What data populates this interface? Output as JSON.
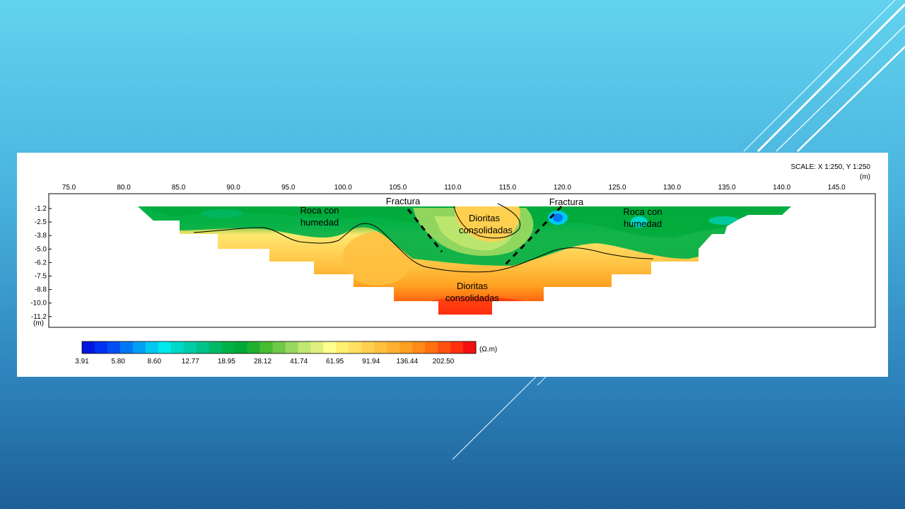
{
  "scale_label": "SCALE: X 1:250, Y 1:250",
  "x_unit": "(m)",
  "y_unit": "(m)",
  "x_ticks": [
    "75.0",
    "80.0",
    "85.0",
    "90.0",
    "95.0",
    "100.0",
    "105.0",
    "110.0",
    "115.0",
    "120.0",
    "125.0",
    "130.0",
    "135.0",
    "140.0",
    "145.0"
  ],
  "y_ticks": [
    "-1.2",
    "-2.5",
    "-3.8",
    "-5.0",
    "-6.2",
    "-7.5",
    "-8.8",
    "-10.0",
    "-11.2"
  ],
  "annotations": {
    "fractura_left": "Fractura",
    "fractura_right": "Fractura",
    "roca_left_1": "Roca con",
    "roca_left_2": "humedad",
    "roca_right_1": "Roca con",
    "roca_right_2": "humedad",
    "dioritas_top_1": "Dioritas",
    "dioritas_top_2": "consolidadas",
    "dioritas_bottom_1": "Dioritas",
    "dioritas_bottom_2": "consolidadas"
  },
  "colorbar": {
    "unit": "(Ω.m)",
    "labels": [
      "3.91",
      "5.80",
      "8.60",
      "12.77",
      "18.95",
      "28.12",
      "41.74",
      "61.95",
      "91.94",
      "136.44",
      "202.50"
    ],
    "colors": [
      "#0018e0",
      "#0030f0",
      "#0050f5",
      "#0078f5",
      "#00a0f5",
      "#00c8f0",
      "#00e8ec",
      "#00d8c8",
      "#00cca8",
      "#00c288",
      "#00b868",
      "#00b048",
      "#00a838",
      "#20b030",
      "#48bc30",
      "#70c848",
      "#98d860",
      "#c0e870",
      "#e0f080",
      "#ffff90",
      "#fff070",
      "#ffe060",
      "#ffd050",
      "#ffc040",
      "#ffb030",
      "#ffa020",
      "#ff8a18",
      "#ff7010",
      "#ff5010",
      "#ff3010",
      "#f41010"
    ]
  },
  "colors": {
    "fracture_line": "#000000",
    "boundary_line": "#000000",
    "panel_bg": "#ffffff"
  }
}
